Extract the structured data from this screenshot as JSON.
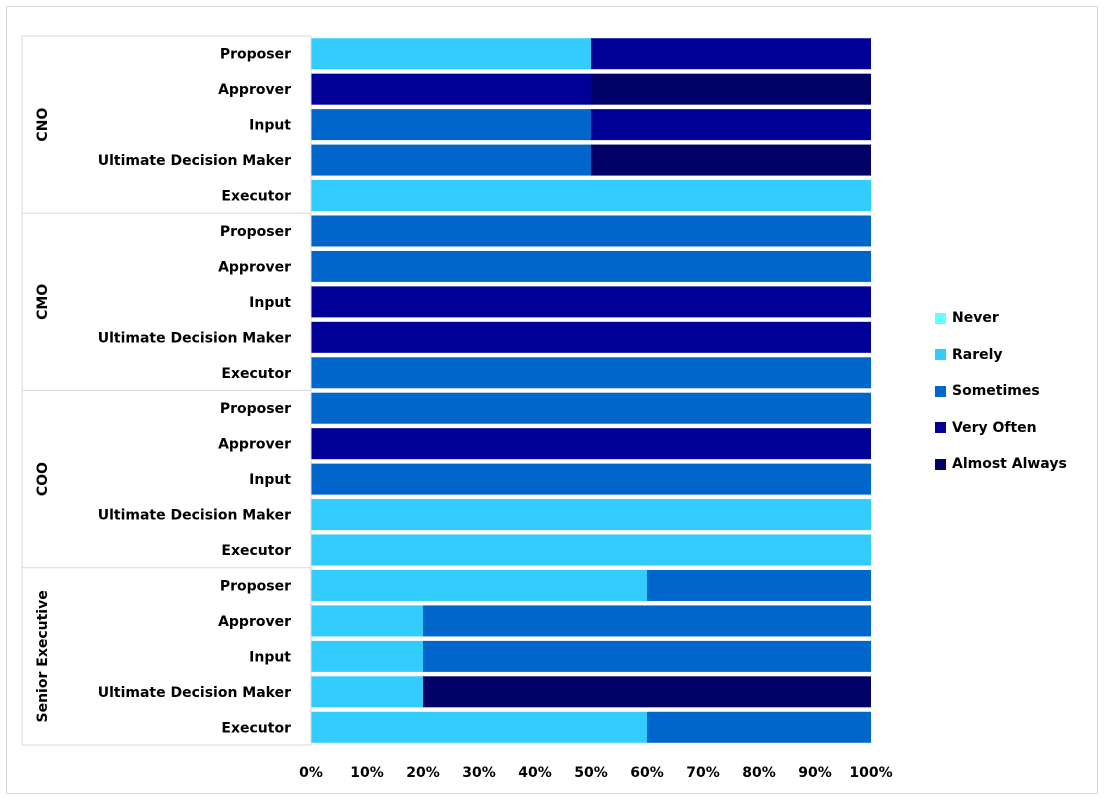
{
  "chart_data": {
    "type": "bar",
    "orientation": "horizontal",
    "stacked": "percent",
    "title": "",
    "xlabel": "",
    "ylabel": "",
    "xlim": [
      0,
      100
    ],
    "x_ticks": [
      "0%",
      "10%",
      "20%",
      "30%",
      "40%",
      "50%",
      "60%",
      "70%",
      "80%",
      "90%",
      "100%"
    ],
    "legend_position": "right",
    "grid": false,
    "series": [
      {
        "name": "Never",
        "color": "#66ffff"
      },
      {
        "name": "Rarely",
        "color": "#33ccff"
      },
      {
        "name": "Sometimes",
        "color": "#0066cc"
      },
      {
        "name": "Very Often",
        "color": "#000099"
      },
      {
        "name": "Almost Always",
        "color": "#000066"
      }
    ],
    "groups": [
      {
        "name": "CNO",
        "rows": [
          {
            "label": "Proposer",
            "values": [
              0,
              50,
              0,
              50,
              0
            ]
          },
          {
            "label": "Approver",
            "values": [
              0,
              0,
              0,
              50,
              50
            ]
          },
          {
            "label": "Input",
            "values": [
              0,
              0,
              50,
              50,
              0
            ]
          },
          {
            "label": "Ultimate Decision Maker",
            "values": [
              0,
              0,
              50,
              0,
              50
            ]
          },
          {
            "label": "Executor",
            "values": [
              0,
              100,
              0,
              0,
              0
            ]
          }
        ]
      },
      {
        "name": "CMO",
        "rows": [
          {
            "label": "Proposer",
            "values": [
              0,
              0,
              100,
              0,
              0
            ]
          },
          {
            "label": "Approver",
            "values": [
              0,
              0,
              100,
              0,
              0
            ]
          },
          {
            "label": "Input",
            "values": [
              0,
              0,
              0,
              100,
              0
            ]
          },
          {
            "label": "Ultimate Decision Maker",
            "values": [
              0,
              0,
              0,
              100,
              0
            ]
          },
          {
            "label": "Executor",
            "values": [
              0,
              0,
              100,
              0,
              0
            ]
          }
        ]
      },
      {
        "name": "COO",
        "rows": [
          {
            "label": "Proposer",
            "values": [
              0,
              0,
              100,
              0,
              0
            ]
          },
          {
            "label": "Approver",
            "values": [
              0,
              0,
              0,
              100,
              0
            ]
          },
          {
            "label": "Input",
            "values": [
              0,
              0,
              100,
              0,
              0
            ]
          },
          {
            "label": "Ultimate Decision Maker",
            "values": [
              0,
              100,
              0,
              0,
              0
            ]
          },
          {
            "label": "Executor",
            "values": [
              0,
              100,
              0,
              0,
              0
            ]
          }
        ]
      },
      {
        "name": "Senior Executive",
        "rows": [
          {
            "label": "Proposer",
            "values": [
              0,
              60,
              40,
              0,
              0
            ]
          },
          {
            "label": "Approver",
            "values": [
              0,
              20,
              80,
              0,
              0
            ]
          },
          {
            "label": "Input",
            "values": [
              0,
              20,
              80,
              0,
              0
            ]
          },
          {
            "label": "Ultimate Decision Maker",
            "values": [
              0,
              20,
              0,
              0,
              80
            ]
          },
          {
            "label": "Executor",
            "values": [
              0,
              60,
              40,
              0,
              0
            ]
          }
        ]
      }
    ]
  }
}
